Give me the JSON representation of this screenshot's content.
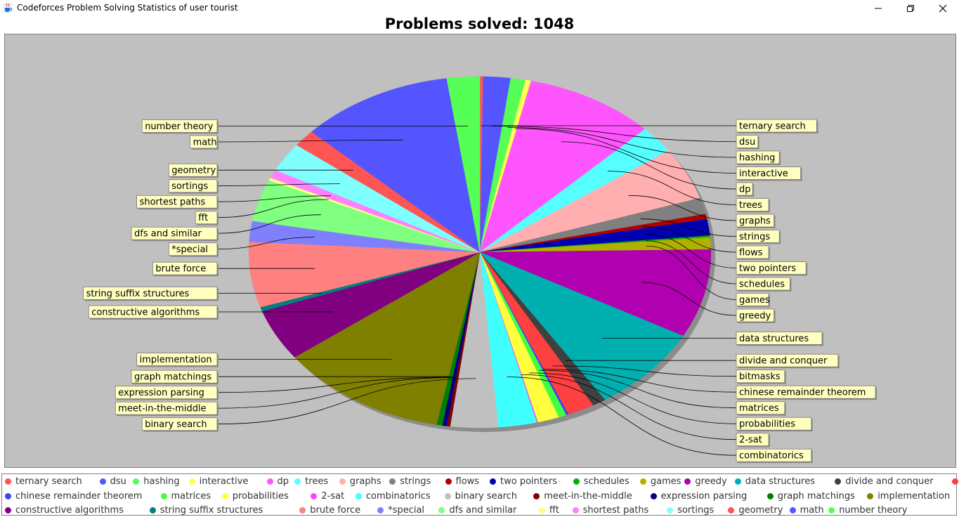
{
  "window": {
    "title": "Codeforces Problem Solving Statistics of user tourist",
    "app_icon": "java-cup-icon",
    "controls": [
      "minimize-icon",
      "restore-icon",
      "close-icon"
    ]
  },
  "chart_data": {
    "type": "pie",
    "title": "Problems solved: 1048",
    "start_angle_deg": 90,
    "direction": "clockwise",
    "slices": [
      {
        "label": "ternary search",
        "value": 3,
        "color": "#FF5555"
      },
      {
        "label": "dsu",
        "value": 24,
        "color": "#5555FF"
      },
      {
        "label": "hashing",
        "value": 13,
        "color": "#55FF55"
      },
      {
        "label": "interactive",
        "value": 5,
        "color": "#FFFF55"
      },
      {
        "label": "dp",
        "value": 115,
        "color": "#FF55FF"
      },
      {
        "label": "trees",
        "value": 32,
        "color": "#55FFFF"
      },
      {
        "label": "graphs",
        "value": 61,
        "color": "#FFAFAF"
      },
      {
        "label": "strings",
        "value": 19,
        "color": "#808080"
      },
      {
        "label": "flows",
        "value": 6,
        "color": "#B00000"
      },
      {
        "label": "two pointers",
        "value": 19,
        "color": "#0000B0"
      },
      {
        "label": "schedules",
        "value": 2,
        "color": "#00B000"
      },
      {
        "label": "games",
        "value": 14,
        "color": "#B0B000"
      },
      {
        "label": "greedy",
        "value": 103,
        "color": "#B000B0"
      },
      {
        "label": "data structures",
        "value": 101,
        "color": "#00B0B0"
      },
      {
        "label": "divide and conquer",
        "value": 12,
        "color": "#404040"
      },
      {
        "label": "bitmasks",
        "value": 24,
        "color": "#FF4040"
      },
      {
        "label": "chinese remainder theorem",
        "value": 2,
        "color": "#4040FF"
      },
      {
        "label": "matrices",
        "value": 7,
        "color": "#40FF40"
      },
      {
        "label": "probabilities",
        "value": 19,
        "color": "#FFFF40"
      },
      {
        "label": "2-sat",
        "value": 1,
        "color": "#FF40FF"
      },
      {
        "label": "combinatorics",
        "value": 34,
        "color": "#40FFFF"
      },
      {
        "label": "binary search",
        "value": 42,
        "color": "#C0C0C0"
      },
      {
        "label": "meet-in-the-middle",
        "value": 3,
        "color": "#800000"
      },
      {
        "label": "expression parsing",
        "value": 4,
        "color": "#000080"
      },
      {
        "label": "graph matchings",
        "value": 5,
        "color": "#008000"
      },
      {
        "label": "implementation",
        "value": 149,
        "color": "#808000"
      },
      {
        "label": "constructive algorithms",
        "value": 60,
        "color": "#800080"
      },
      {
        "label": "string suffix structures",
        "value": 5,
        "color": "#008080"
      },
      {
        "label": "brute force",
        "value": 76,
        "color": "#FF8080"
      },
      {
        "label": "*special",
        "value": 24,
        "color": "#8080FF"
      },
      {
        "label": "dfs and similar",
        "value": 49,
        "color": "#80FF80"
      },
      {
        "label": "fft",
        "value": 3,
        "color": "#FFFF80"
      },
      {
        "label": "shortest paths",
        "value": 10,
        "color": "#FF80FF"
      },
      {
        "label": "sortings",
        "value": 34,
        "color": "#80FFFF"
      },
      {
        "label": "geometry",
        "value": 20,
        "color": "#FF5555"
      },
      {
        "label": "math",
        "value": 135,
        "color": "#5555FF"
      },
      {
        "label": "number theory",
        "value": 29,
        "color": "#55FF55"
      }
    ]
  }
}
